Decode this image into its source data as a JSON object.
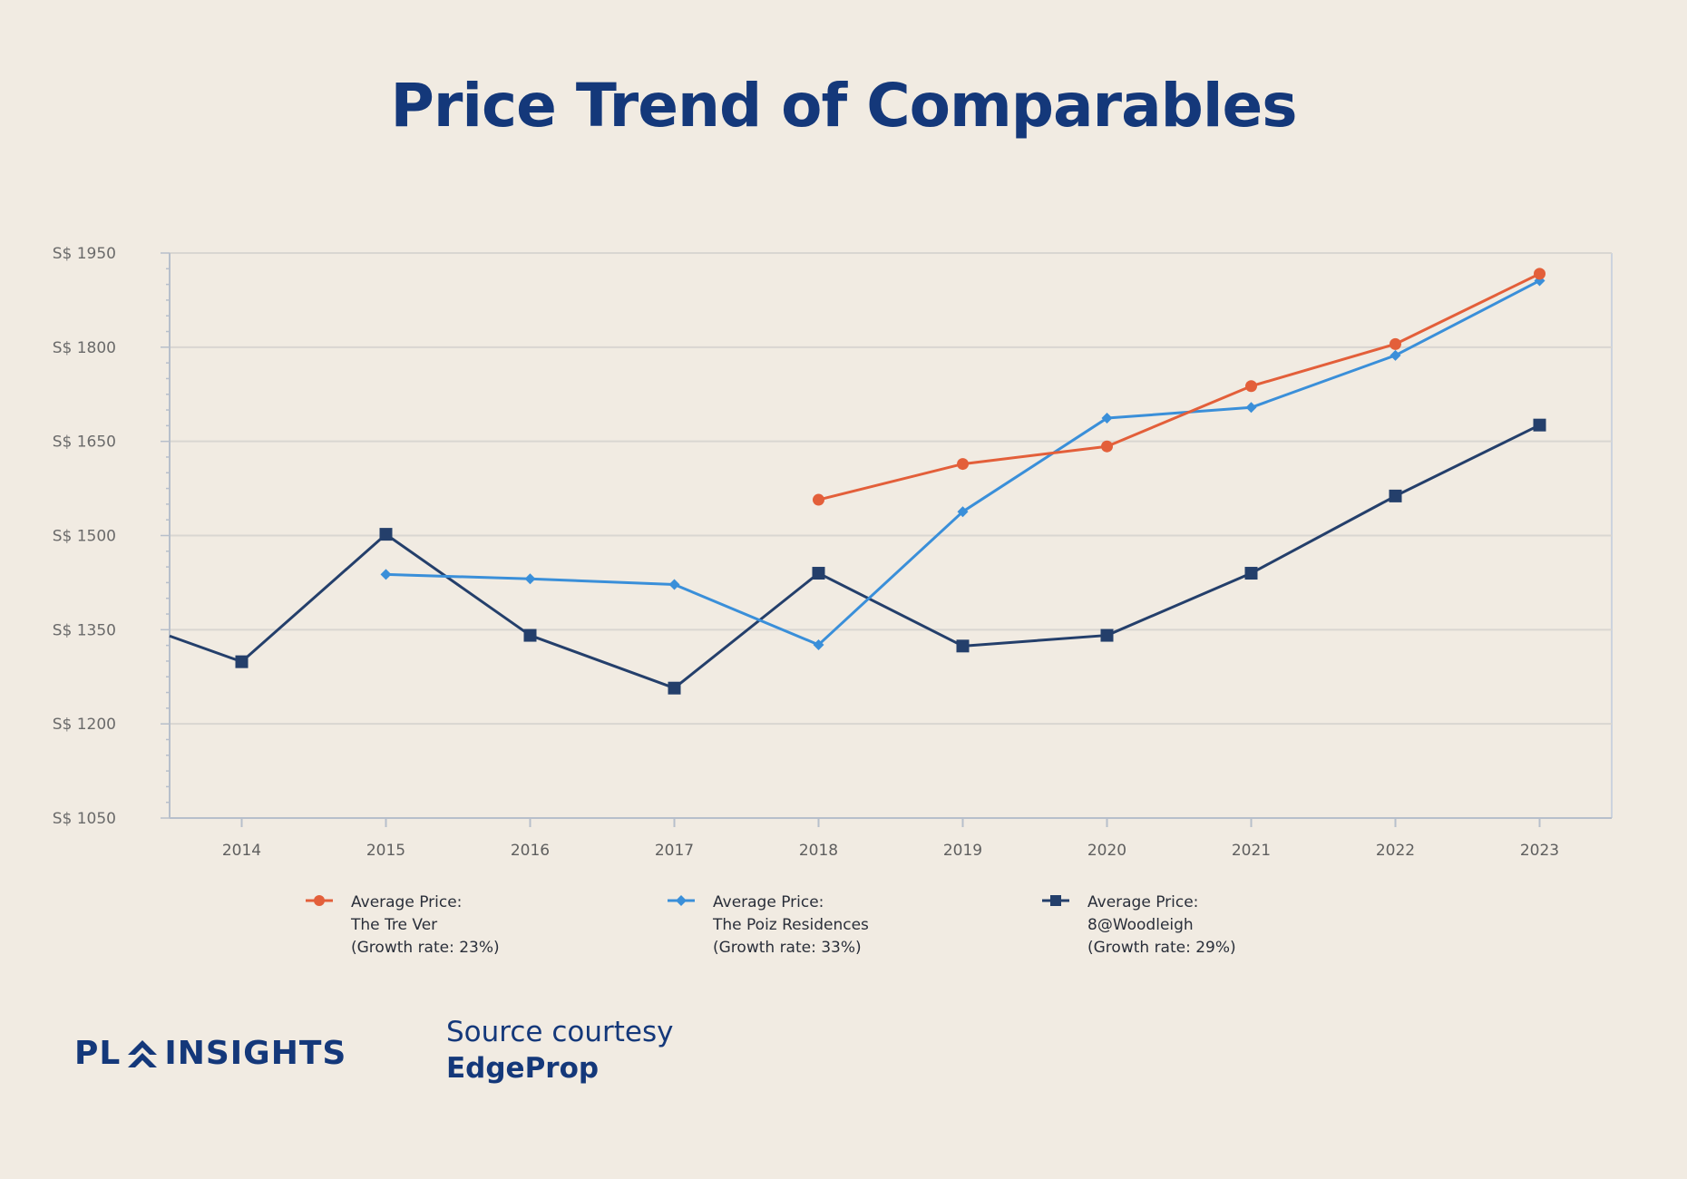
{
  "title": "Price Trend of Comparables",
  "chart_data": {
    "type": "line",
    "title": "Price Trend of Comparables",
    "xlabel": "",
    "ylabel": "",
    "x": [
      2014,
      2015,
      2016,
      2017,
      2018,
      2019,
      2020,
      2021,
      2022,
      2023
    ],
    "y_tick_labels": [
      "S$ 1950",
      "S$ 1800",
      "S$ 1650",
      "S$ 1500",
      "S$ 1350",
      "S$ 1200",
      "S$ 1050"
    ],
    "y_ticks": [
      1950,
      1800,
      1650,
      1500,
      1350,
      1200,
      1050
    ],
    "ylim": [
      1050,
      1950
    ],
    "xlim": [
      2013.5,
      2023.5
    ],
    "grid": true,
    "legend_position": "bottom",
    "series": [
      {
        "name_lines": [
          "Average Price:",
          "The Tre Ver",
          "(Growth rate: 23%)"
        ],
        "color": "#e35f3a",
        "marker": "circle",
        "x": [
          2018,
          2019,
          2020,
          2021,
          2022,
          2023
        ],
        "values": [
          1557,
          1614,
          1642,
          1738,
          1805,
          1917
        ]
      },
      {
        "name_lines": [
          "Average Price:",
          "The Poiz Residences",
          "(Growth rate: 33%)"
        ],
        "color": "#3a8fd9",
        "marker": "diamond",
        "x": [
          2015,
          2016,
          2017,
          2018,
          2019,
          2020,
          2021,
          2022,
          2023
        ],
        "values": [
          1438,
          1431,
          1422,
          1326,
          1538,
          1687,
          1704,
          1787,
          1906
        ]
      },
      {
        "name_lines": [
          "Average Price:",
          "8@Woodleigh",
          "(Growth rate: 29%)"
        ],
        "color": "#243f6b",
        "marker": "square",
        "x": [
          2013.5,
          2014,
          2015,
          2016,
          2017,
          2018,
          2019,
          2020,
          2021,
          2022,
          2023
        ],
        "values": [
          1340,
          1299,
          1502,
          1341,
          1257,
          1440,
          1324,
          1341,
          1440,
          1563,
          1676
        ]
      }
    ]
  },
  "footer": {
    "logo_left": "PL",
    "logo_right": "INSIGHTS",
    "source_line1": "Source courtesy",
    "source_line2": "EdgeProp"
  }
}
